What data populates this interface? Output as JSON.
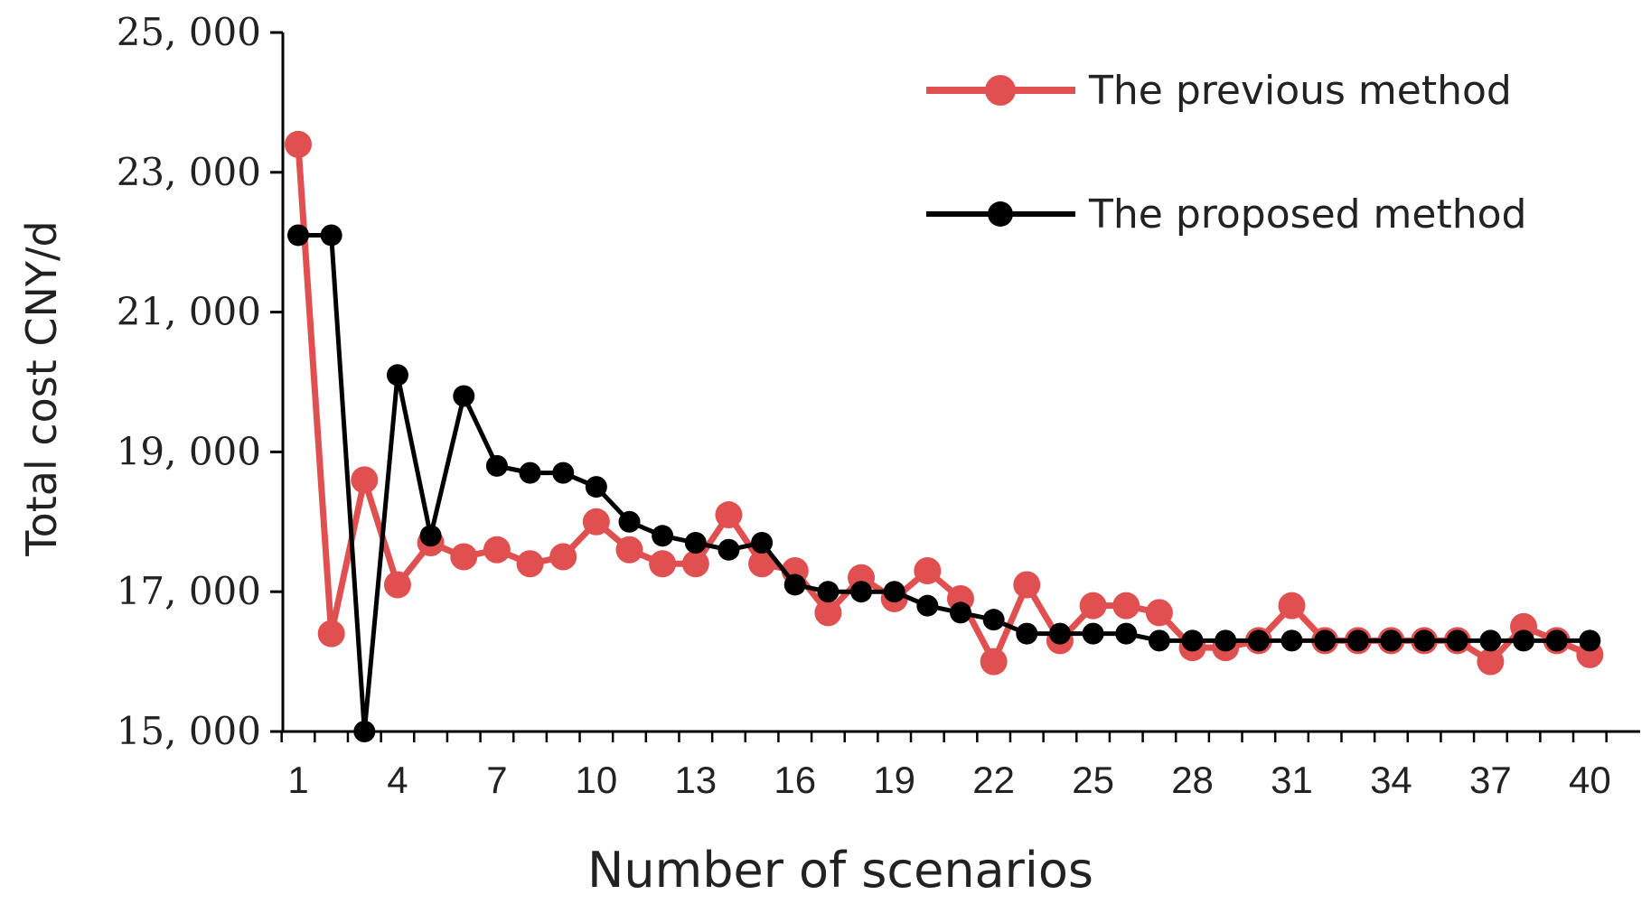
{
  "chart_data": {
    "type": "line",
    "title": "",
    "xlabel": "Number of scenarios",
    "ylabel": "Total cost CNY/d",
    "x": [
      1,
      2,
      3,
      4,
      5,
      6,
      7,
      8,
      9,
      10,
      11,
      12,
      13,
      14,
      15,
      16,
      17,
      18,
      19,
      20,
      21,
      22,
      23,
      24,
      25,
      26,
      27,
      28,
      29,
      30,
      31,
      32,
      33,
      34,
      35,
      36,
      37,
      38,
      39,
      40
    ],
    "xticks": [
      1,
      4,
      7,
      10,
      13,
      16,
      19,
      22,
      25,
      28,
      31,
      34,
      37,
      40
    ],
    "ylim": [
      15000,
      25000
    ],
    "yticks": [
      15000,
      17000,
      19000,
      21000,
      23000,
      25000
    ],
    "ytick_labels": [
      "15, 000",
      "17, 000",
      "19, 000",
      "21, 000",
      "23, 000",
      "25, 000"
    ],
    "legend_position": "top-right",
    "series": [
      {
        "name": "The previous method",
        "color": "#e05050",
        "values": [
          23400,
          16400,
          18600,
          17100,
          17700,
          17500,
          17600,
          17400,
          17500,
          18000,
          17600,
          17400,
          17400,
          18100,
          17400,
          17300,
          16700,
          17200,
          16900,
          17300,
          16900,
          16000,
          17100,
          16300,
          16800,
          16800,
          16700,
          16200,
          16200,
          16300,
          16800,
          16300,
          16300,
          16300,
          16300,
          16300,
          16000,
          16500,
          16300,
          16100
        ]
      },
      {
        "name": "The proposed method",
        "color": "#000000",
        "values": [
          22100,
          22100,
          15000,
          20100,
          17800,
          19800,
          18800,
          18700,
          18700,
          18500,
          18000,
          17800,
          17700,
          17600,
          17700,
          17100,
          17000,
          17000,
          17000,
          16800,
          16700,
          16600,
          16400,
          16400,
          16400,
          16400,
          16300,
          16300,
          16300,
          16300,
          16300,
          16300,
          16300,
          16300,
          16300,
          16300,
          16300,
          16300,
          16300,
          16300
        ]
      }
    ]
  }
}
